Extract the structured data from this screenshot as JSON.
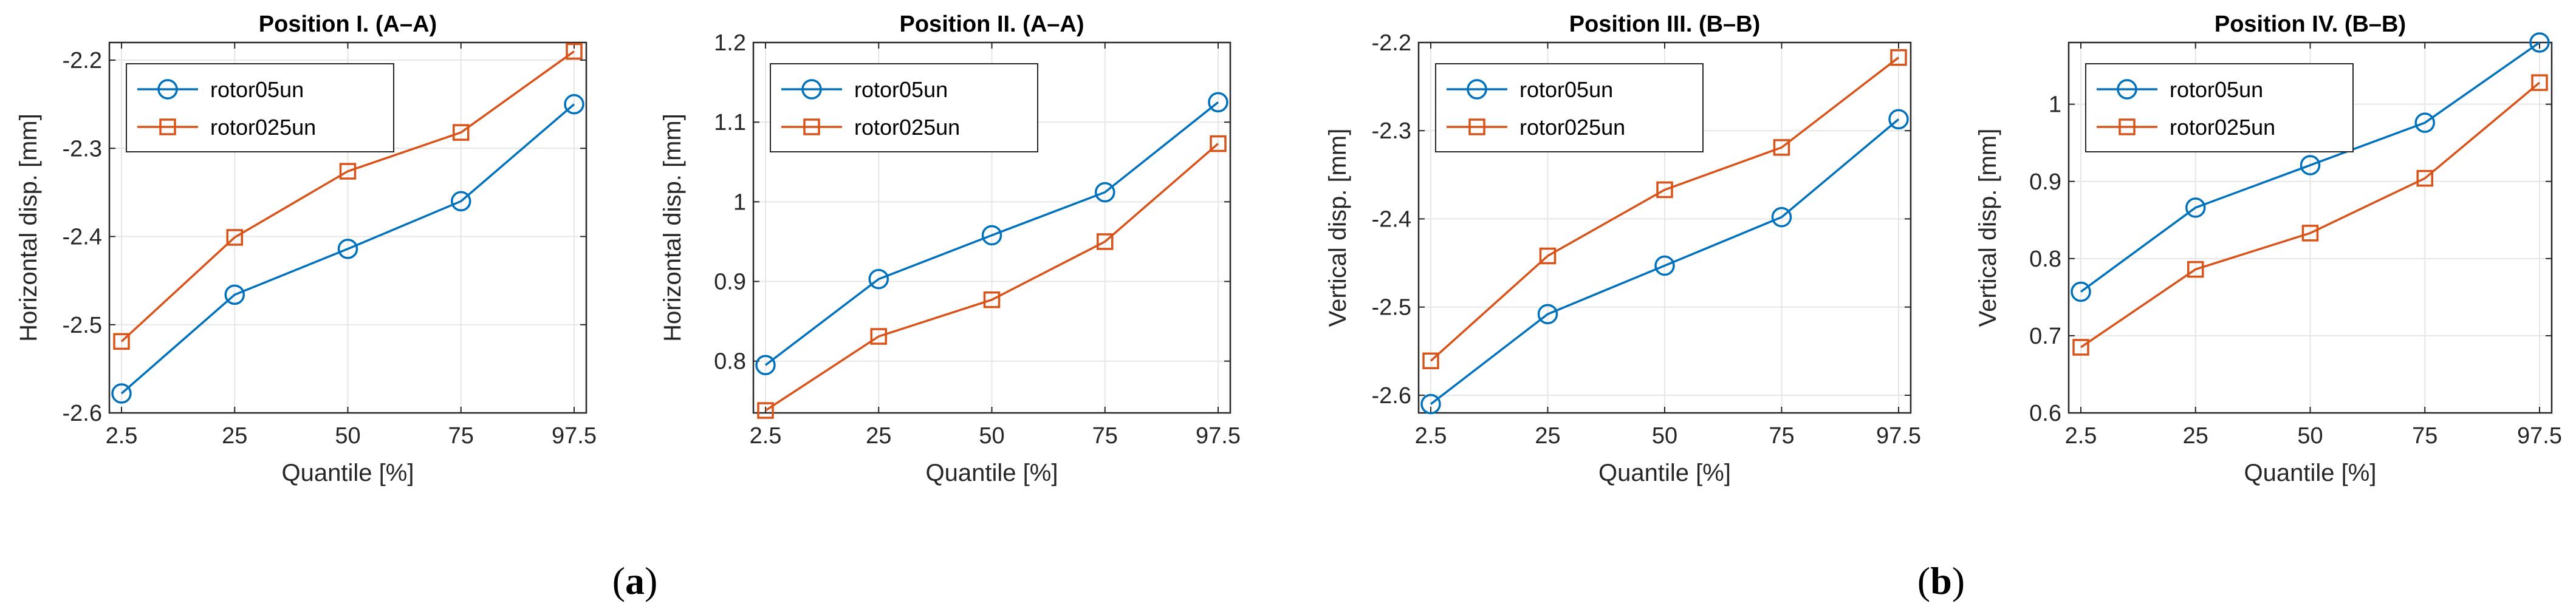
{
  "panel_labels": [
    {
      "open": "(",
      "letter": "a",
      "close": ")"
    },
    {
      "open": "(",
      "letter": "b",
      "close": ")"
    }
  ],
  "colors": {
    "series_1": "#0072BD",
    "series_2": "#D95319",
    "grid": "#E6E6E6",
    "axis": "#262626"
  },
  "chart_data": [
    {
      "type": "line",
      "title": "Position I. (A–A)",
      "xlabel": "Quantile [%]",
      "ylabel": "Horizontal disp. [mm]",
      "categories": [
        "2.5",
        "25",
        "50",
        "75",
        "97.5"
      ],
      "ylim": [
        -2.6,
        -2.18
      ],
      "yticks": [
        -2.6,
        -2.5,
        -2.4,
        -2.3,
        -2.2
      ],
      "ytick_labels": [
        "-2.6",
        "-2.5",
        "-2.4",
        "-2.3",
        "-2.2"
      ],
      "grid": true,
      "legend_position": "top-left",
      "series": [
        {
          "name": "rotor05un",
          "marker": "circle",
          "values": [
            -2.578,
            -2.466,
            -2.414,
            -2.36,
            -2.25
          ]
        },
        {
          "name": "rotor025un",
          "marker": "square",
          "values": [
            -2.519,
            -2.401,
            -2.326,
            -2.282,
            -2.19
          ]
        }
      ]
    },
    {
      "type": "line",
      "title": "Position II. (A–A)",
      "xlabel": "Quantile [%]",
      "ylabel": "Horizontal disp. [mm]",
      "categories": [
        "2.5",
        "25",
        "50",
        "75",
        "97.5"
      ],
      "ylim": [
        0.735,
        1.2
      ],
      "yticks": [
        0.8,
        0.9,
        1.0,
        1.1,
        1.2
      ],
      "ytick_labels": [
        "0.8",
        "0.9",
        "1",
        "1.1",
        "1.2"
      ],
      "grid": true,
      "legend_position": "top-left",
      "series": [
        {
          "name": "rotor05un",
          "marker": "circle",
          "values": [
            0.795,
            0.903,
            0.958,
            1.012,
            1.125
          ]
        },
        {
          "name": "rotor025un",
          "marker": "square",
          "values": [
            0.738,
            0.831,
            0.877,
            0.95,
            1.073
          ]
        }
      ]
    },
    {
      "type": "line",
      "title": "Position III. (B–B)",
      "xlabel": "Quantile [%]",
      "ylabel": "Vertical disp. [mm]",
      "categories": [
        "2.5",
        "25",
        "50",
        "75",
        "97.5"
      ],
      "ylim": [
        -2.62,
        -2.2
      ],
      "yticks": [
        -2.6,
        -2.5,
        -2.4,
        -2.3,
        -2.2
      ],
      "ytick_labels": [
        "-2.6",
        "-2.5",
        "-2.4",
        "-2.3",
        "-2.2"
      ],
      "grid": true,
      "legend_position": "top-left",
      "series": [
        {
          "name": "rotor05un",
          "marker": "circle",
          "values": [
            -2.61,
            -2.508,
            -2.453,
            -2.398,
            -2.287
          ]
        },
        {
          "name": "rotor025un",
          "marker": "square",
          "values": [
            -2.561,
            -2.442,
            -2.367,
            -2.319,
            -2.217
          ]
        }
      ]
    },
    {
      "type": "line",
      "title": "Position IV. (B–B)",
      "xlabel": "Quantile [%]",
      "ylabel": "Vertical disp. [mm]",
      "categories": [
        "2.5",
        "25",
        "50",
        "75",
        "97.5"
      ],
      "ylim": [
        0.6,
        1.08
      ],
      "yticks": [
        0.6,
        0.7,
        0.8,
        0.9,
        1.0
      ],
      "ytick_labels": [
        "0.6",
        "0.7",
        "0.8",
        "0.9",
        "1"
      ],
      "grid": true,
      "legend_position": "top-left",
      "series": [
        {
          "name": "rotor05un",
          "marker": "circle",
          "values": [
            0.757,
            0.866,
            0.921,
            0.976,
            1.08
          ]
        },
        {
          "name": "rotor025un",
          "marker": "square",
          "values": [
            0.685,
            0.786,
            0.833,
            0.904,
            1.028
          ]
        }
      ]
    }
  ]
}
